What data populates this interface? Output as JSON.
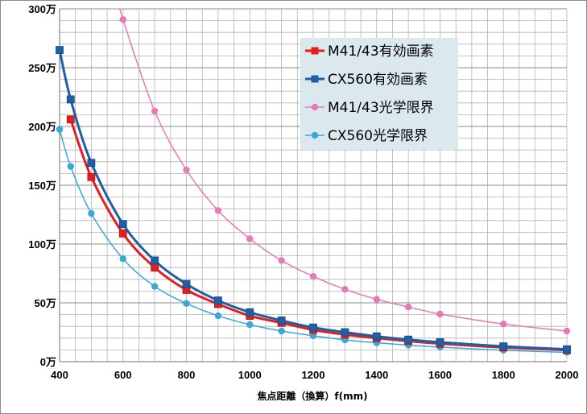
{
  "chart_data": {
    "type": "line",
    "xlabel": "焦点距離（換算）f(mm)",
    "ylabel": "",
    "xlim": [
      400,
      2000
    ],
    "ylim": [
      0,
      300
    ],
    "x_ticks": [
      400,
      600,
      800,
      1000,
      1200,
      1400,
      1600,
      1800,
      2000
    ],
    "y_ticks": [
      0,
      50,
      100,
      150,
      200,
      250,
      300
    ],
    "y_tick_labels": [
      "0万",
      "50万",
      "100万",
      "150万",
      "200万",
      "250万",
      "300万"
    ],
    "grid": true,
    "legend_position": "top-right",
    "series": [
      {
        "name": "M41/43有効画素",
        "color": "#e0201e",
        "marker": "square",
        "line_width": 3,
        "x": [
          435,
          500,
          600,
          700,
          800,
          900,
          1000,
          1100,
          1200,
          1300,
          1400,
          1500,
          1600,
          1800,
          2000
        ],
        "values": [
          206,
          157,
          109,
          80,
          61,
          49,
          39,
          33,
          27,
          23,
          20,
          17.5,
          15.3,
          12.1,
          9.8
        ]
      },
      {
        "name": "CX560有効画素",
        "color": "#1f5fa6",
        "marker": "square",
        "line_width": 3,
        "x": [
          400,
          435,
          500,
          600,
          700,
          800,
          900,
          1000,
          1100,
          1200,
          1300,
          1400,
          1500,
          1600,
          1800,
          2000
        ],
        "values": [
          265,
          223,
          169,
          117,
          86,
          66,
          52,
          42,
          35,
          29,
          25,
          21.5,
          18.7,
          16.5,
          13,
          10.5
        ]
      },
      {
        "name": "M41/43光学限界",
        "color": "#e67ab4",
        "marker": "circle",
        "line_width": 1.5,
        "x": [
          600,
          700,
          800,
          900,
          1000,
          1100,
          1200,
          1300,
          1400,
          1500,
          1600,
          1800,
          2000
        ],
        "values": [
          291,
          213,
          163,
          128.5,
          104.5,
          86,
          72.5,
          61.5,
          53,
          46.5,
          40.5,
          32,
          26
        ]
      },
      {
        "name": "CX560光学限界",
        "color": "#38a8d8",
        "marker": "circle",
        "line_width": 1.5,
        "x": [
          400,
          435,
          500,
          600,
          700,
          800,
          900,
          1000,
          1100,
          1200,
          1300,
          1400,
          1500,
          1600,
          1800,
          2000
        ],
        "values": [
          197.5,
          166,
          126,
          87.5,
          64,
          49.5,
          39,
          31.5,
          26,
          22,
          18.5,
          16,
          14,
          12.3,
          9.7,
          7.9
        ]
      }
    ]
  }
}
